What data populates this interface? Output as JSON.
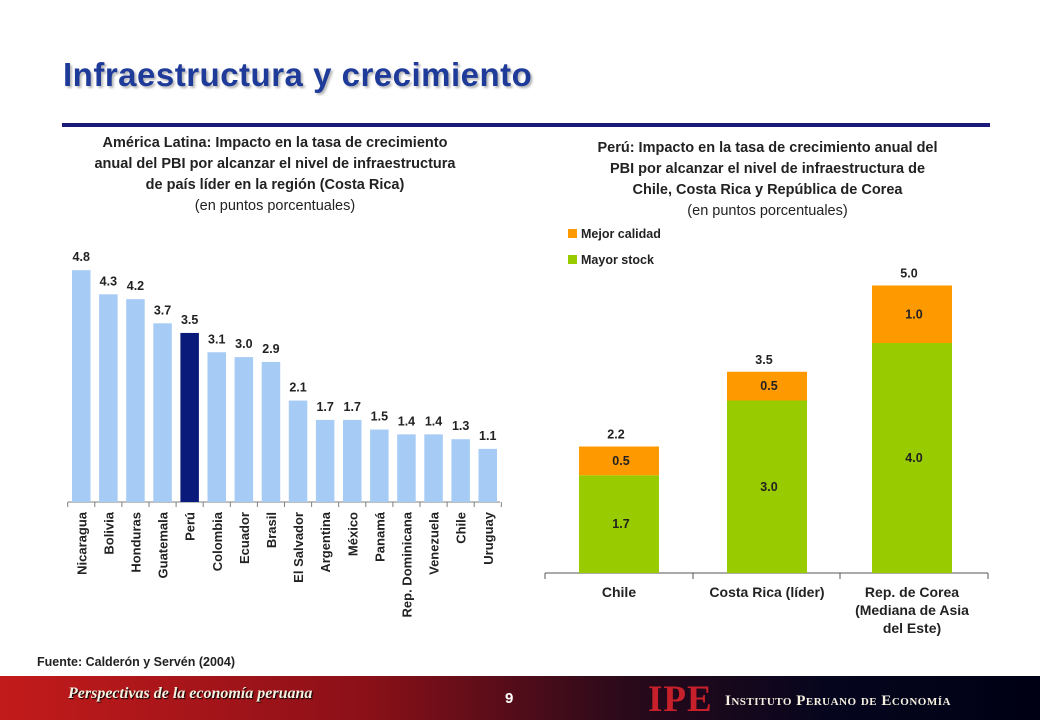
{
  "slide": {
    "title": "Infraestructura y crecimiento",
    "source": "Fuente: Calderón y Servén (2004)",
    "footer_left": "Perspectivas de la economía peruana",
    "page_number": "9",
    "logo_text": "IPE",
    "org_name": "Instituto Peruano de Economía"
  },
  "left_chart": {
    "title_lines": [
      "América Latina: Impacto en la tasa de crecimiento",
      "anual del PBI por alcanzar el nivel de infraestructura",
      "de país líder en la región (Costa Rica)"
    ],
    "subtitle": "(en puntos porcentuales)"
  },
  "right_chart": {
    "title_lines": [
      "Perú: Impacto en la tasa de crecimiento anual del",
      "PBI por alcanzar el nivel de infraestructura de",
      "Chile, Costa Rica y República de Corea"
    ],
    "subtitle": "(en puntos porcentuales)"
  },
  "chart_data": [
    {
      "type": "bar",
      "categories": [
        "Nicaragua",
        "Bolivia",
        "Honduras",
        "Guatemala",
        "Perú",
        "Colombia",
        "Ecuador",
        "Brasil",
        "El Salvador",
        "Argentina",
        "México",
        "Panamá",
        "Rep. Dominicana",
        "Venezuela",
        "Chile",
        "Uruguay"
      ],
      "values": [
        4.8,
        4.3,
        4.2,
        3.7,
        3.5,
        3.1,
        3.0,
        2.9,
        2.1,
        1.7,
        1.7,
        1.5,
        1.4,
        1.4,
        1.3,
        1.1
      ],
      "value_labels": [
        "4.8",
        "4.3",
        "4.2",
        "3.7",
        "3.5",
        "3.1",
        "3.0",
        "2.9",
        "2.1",
        "1.7",
        "1.7",
        "1.5",
        "1.4",
        "1.4",
        "1.3",
        "1.1"
      ],
      "highlight": "Perú",
      "colors": {
        "bar": "#a6cbf5",
        "highlight": "#0a1a7a",
        "axis": "#7f7f7f"
      },
      "ylim": [
        0,
        5
      ]
    },
    {
      "type": "bar",
      "stacked": true,
      "categories": [
        "Chile",
        "Costa Rica (líder)",
        "Rep. de Corea (Mediana de Asia del Este)"
      ],
      "category_label_lines": [
        [
          "Chile"
        ],
        [
          "Costa Rica (líder)"
        ],
        [
          "Rep. de Corea",
          "(Mediana de Asia",
          "del Este)"
        ]
      ],
      "series": [
        {
          "name": "Mayor stock",
          "values": [
            1.7,
            3.0,
            4.0
          ],
          "labels": [
            "1.7",
            "3.0",
            "4.0"
          ],
          "color": "#99cc00"
        },
        {
          "name": "Mejor calidad",
          "values": [
            0.5,
            0.5,
            1.0
          ],
          "labels": [
            "0.5",
            "0.5",
            "1.0"
          ],
          "color": "#ff9900"
        }
      ],
      "totals": [
        2.2,
        3.5,
        5.0
      ],
      "total_labels": [
        "2.2",
        "3.5",
        "5.0"
      ],
      "legend": {
        "position": "top-left",
        "items": [
          "Mejor calidad",
          "Mayor stock"
        ]
      },
      "ylim": [
        0,
        5.5
      ]
    }
  ]
}
